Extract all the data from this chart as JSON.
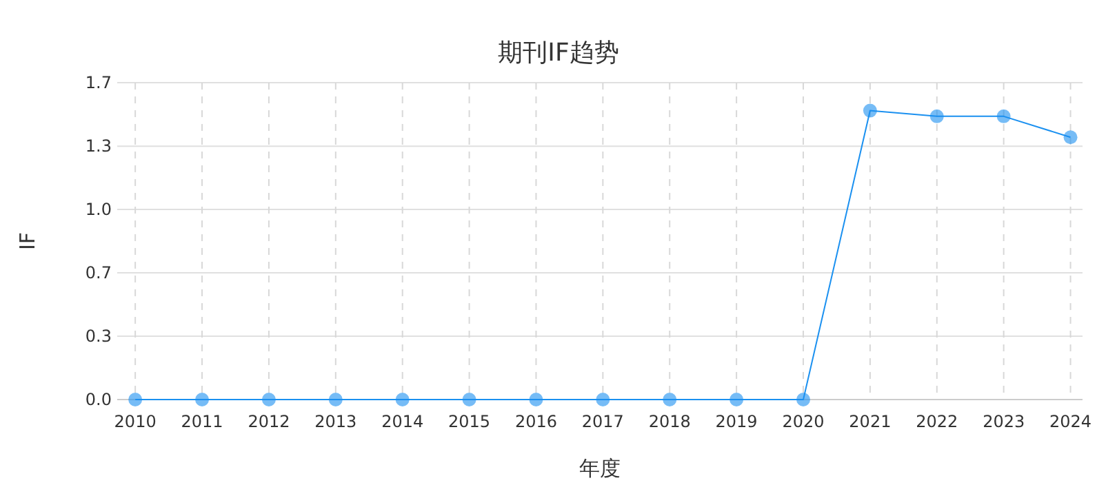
{
  "chart_data": {
    "type": "line",
    "title": "期刊IF趋势",
    "xlabel": "年度",
    "ylabel": "IF",
    "categories": [
      "2010",
      "2011",
      "2012",
      "2013",
      "2014",
      "2015",
      "2016",
      "2017",
      "2018",
      "2019",
      "2020",
      "2021",
      "2022",
      "2023",
      "2024"
    ],
    "series": [
      {
        "color": "#1a90f0",
        "values": [
          0,
          0,
          0,
          0,
          0,
          0,
          0,
          0,
          0,
          0,
          0,
          1.52,
          1.49,
          1.49,
          1.38
        ]
      }
    ],
    "ylim": [
      0,
      1.667
    ],
    "yticks": [
      {
        "value": 0,
        "label": "0.0"
      },
      {
        "value": 0.333,
        "label": "0.3"
      },
      {
        "value": 0.667,
        "label": "0.7"
      },
      {
        "value": 1.0,
        "label": "1.0"
      },
      {
        "value": 1.333,
        "label": "1.3"
      },
      {
        "value": 1.667,
        "label": "1.7"
      }
    ],
    "grid": true,
    "marker": "circle",
    "line_style": "solid"
  }
}
